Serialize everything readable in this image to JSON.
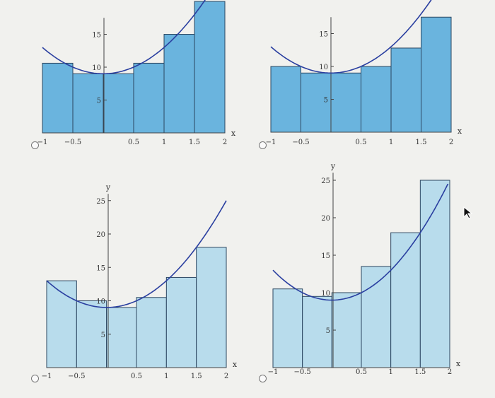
{
  "chart_data": [
    {
      "type": "bar",
      "xlabel": "x",
      "ylabel": "",
      "xlim": [
        -1,
        2
      ],
      "ylim": [
        0,
        17.5
      ],
      "xticks": [
        "-1",
        "-0.5",
        "0.5",
        "1",
        "1.5",
        "2"
      ],
      "yticks": [
        "5",
        "10",
        "15"
      ],
      "x": [
        -1,
        -0.5,
        0,
        0.5,
        1,
        1.5
      ],
      "values": [
        10.6,
        9,
        9,
        10.6,
        15,
        20
      ],
      "curve": "parabola",
      "fill_color": "#6ab4de",
      "curve_color": "#2a3fa0"
    },
    {
      "type": "bar",
      "xlabel": "x",
      "ylabel": "",
      "xlim": [
        -1,
        2
      ],
      "ylim": [
        0,
        17.5
      ],
      "xticks": [
        "-1",
        "-0.5",
        "0.5",
        "1",
        "1.5",
        "2"
      ],
      "yticks": [
        "5",
        "10",
        "15"
      ],
      "x": [
        -1,
        -0.5,
        0,
        0.5,
        1,
        1.5
      ],
      "values": [
        10,
        9,
        9,
        10,
        12.8,
        17.5
      ],
      "curve": "parabola",
      "fill_color": "#6ab4de",
      "curve_color": "#2a3fa0"
    },
    {
      "type": "bar",
      "xlabel": "x",
      "ylabel": "y",
      "xlim": [
        -1,
        2
      ],
      "ylim": [
        0,
        26
      ],
      "xticks": [
        "-1",
        "-0.5",
        "0.5",
        "1",
        "1.5",
        "2"
      ],
      "yticks": [
        "5",
        "10",
        "15",
        "20",
        "25"
      ],
      "x": [
        -1,
        -0.5,
        0,
        0.5,
        1,
        1.5
      ],
      "values": [
        13,
        10,
        9,
        10.5,
        13.5,
        18
      ],
      "curve": "parabola",
      "fill_color": "#b8dcec",
      "curve_color": "#2a3fa0"
    },
    {
      "type": "bar",
      "xlabel": "x",
      "ylabel": "y",
      "xlim": [
        -1,
        2
      ],
      "ylim": [
        0,
        26
      ],
      "xticks": [
        "-1",
        "-0.5",
        "0.5",
        "1",
        "1.5",
        "2"
      ],
      "yticks": [
        "5",
        "10",
        "15",
        "20",
        "25"
      ],
      "x": [
        -1,
        -0.5,
        0,
        0.5,
        1,
        1.5
      ],
      "values": [
        10.5,
        9.5,
        10,
        13.5,
        18,
        25
      ],
      "curve": "parabola",
      "fill_color": "#b8dcec",
      "curve_color": "#2a3fa0"
    }
  ]
}
